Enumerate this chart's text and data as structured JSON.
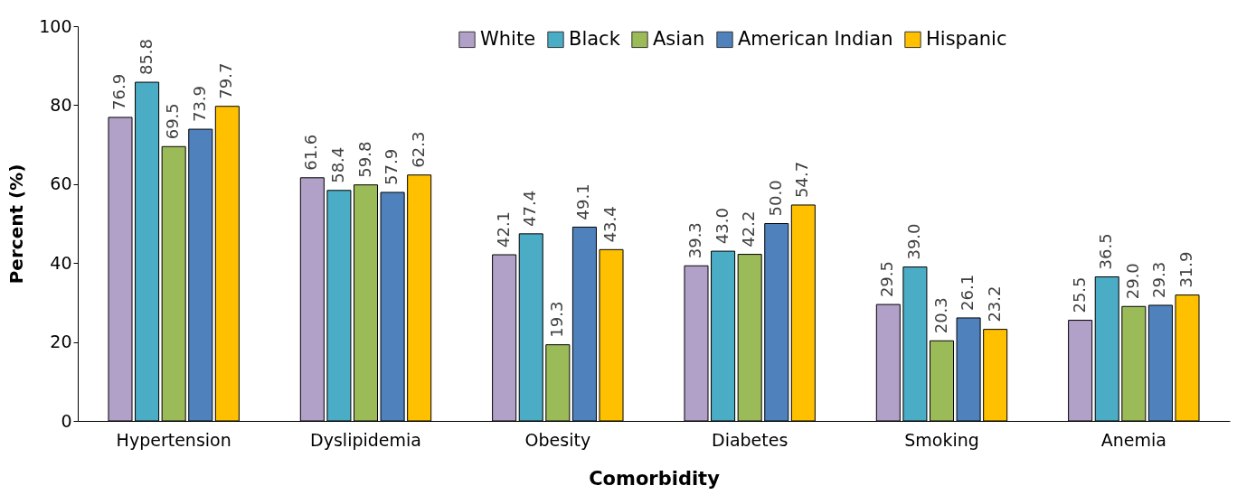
{
  "chart_data": {
    "type": "bar",
    "xlabel": "Comorbidity",
    "ylabel": "Percent (%)",
    "categories": [
      "Hypertension",
      "Dyslipidemia",
      "Obesity",
      "Diabetes",
      "Smoking",
      "Anemia"
    ],
    "series": [
      {
        "name": "White",
        "color": "#b1a0c7",
        "values": [
          76.9,
          61.6,
          42.1,
          39.3,
          29.5,
          25.5
        ],
        "value_labels": [
          "76.9",
          "61.6",
          "42.1",
          "39.3",
          "29.5",
          "25.5"
        ]
      },
      {
        "name": "Black",
        "color": "#4bacc6",
        "values": [
          85.8,
          58.4,
          47.4,
          43,
          39,
          36.5
        ],
        "value_labels": [
          "85.8",
          "58.4",
          "47.4",
          "43.0",
          "39.0",
          "36.5"
        ]
      },
      {
        "name": "Asian",
        "color": "#9bbb59",
        "values": [
          69.5,
          59.8,
          19.3,
          42.2,
          20.3,
          29
        ],
        "value_labels": [
          "69.5",
          "59.8",
          "19.3",
          "42.2",
          "20.3",
          "29.0"
        ]
      },
      {
        "name": "American Indian",
        "color": "#4f81bd",
        "values": [
          73.9,
          57.9,
          49.1,
          50,
          26.1,
          29.3
        ],
        "value_labels": [
          "73.9",
          "57.9",
          "49.1",
          "50.0",
          "26.1",
          "29.3"
        ]
      },
      {
        "name": "Hispanic",
        "color": "#ffc000",
        "values": [
          79.7,
          62.3,
          43.4,
          54.7,
          23.2,
          31.9
        ],
        "value_labels": [
          "79.7",
          "62.3",
          "43.4",
          "54.7",
          "23.2",
          "31.9"
        ]
      }
    ],
    "ylim": [
      0,
      100
    ],
    "yticks": [
      0,
      20,
      40,
      60,
      80,
      100
    ],
    "grid": false,
    "legend": "top"
  }
}
